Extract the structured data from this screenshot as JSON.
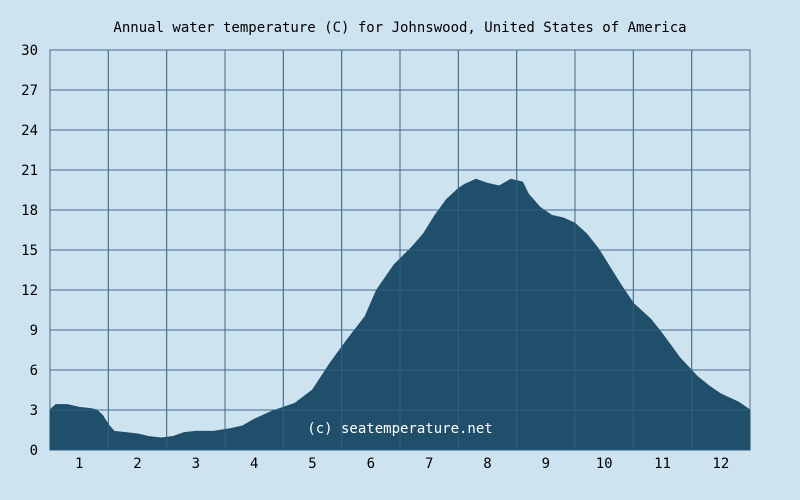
{
  "chart_data": {
    "type": "area",
    "title": "Annual water temperature (C) for Johnswood, United States of America",
    "watermark": "(c) seatemperature.net",
    "xlabel": "",
    "ylabel": "",
    "ylim": [
      0,
      30
    ],
    "y_ticks": [
      "0",
      "3",
      "6",
      "9",
      "12",
      "15",
      "18",
      "21",
      "24",
      "27",
      "30"
    ],
    "x_ticks": [
      "1",
      "2",
      "3",
      "4",
      "5",
      "6",
      "7",
      "8",
      "9",
      "10",
      "11",
      "12"
    ],
    "grid": true,
    "colors": {
      "background": "#cde3f0",
      "area": "#1f4f6b",
      "grid": "#4a6a86",
      "text": "#000000",
      "watermark": "#ffffff"
    },
    "series": [
      {
        "x": [
          0.5,
          0.6,
          0.8,
          1.0,
          1.2,
          1.3,
          1.4,
          1.5,
          1.6,
          1.8,
          2.0,
          2.2,
          2.4,
          2.6,
          2.8,
          3.0,
          3.3,
          3.6,
          3.8,
          4.0,
          4.3,
          4.5,
          4.7,
          5.0,
          5.3,
          5.6,
          5.9,
          6.1,
          6.4,
          6.7,
          6.9,
          7.1,
          7.3,
          7.5,
          7.6,
          7.8,
          8.0,
          8.2,
          8.4,
          8.6,
          8.7,
          8.9,
          9.1,
          9.3,
          9.5,
          9.7,
          9.9,
          10.1,
          10.3,
          10.5,
          10.8,
          11.0,
          11.3,
          11.6,
          11.8,
          12.0,
          12.3,
          12.5
        ],
        "values": [
          3.0,
          3.4,
          3.4,
          3.2,
          3.1,
          3.0,
          2.6,
          1.9,
          1.4,
          1.3,
          1.2,
          1.0,
          0.9,
          1.0,
          1.3,
          1.4,
          1.4,
          1.6,
          1.8,
          2.3,
          2.9,
          3.2,
          3.5,
          4.5,
          6.5,
          8.3,
          10.0,
          12.0,
          13.9,
          15.2,
          16.2,
          17.6,
          18.8,
          19.6,
          19.9,
          20.3,
          20.0,
          19.8,
          20.3,
          20.1,
          19.2,
          18.2,
          17.6,
          17.4,
          17.0,
          16.2,
          15.1,
          13.7,
          12.3,
          11.0,
          9.8,
          8.7,
          6.9,
          5.5,
          4.8,
          4.2,
          3.6,
          3.0
        ]
      }
    ]
  }
}
